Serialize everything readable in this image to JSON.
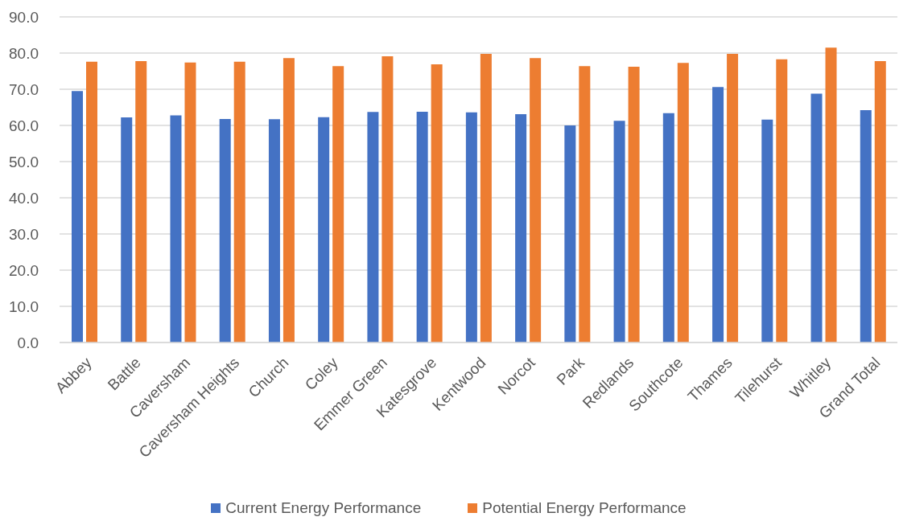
{
  "chart_data": {
    "type": "bar",
    "categories": [
      "Abbey",
      "Battle",
      "Caversham",
      "Caversham Heights",
      "Church",
      "Coley",
      "Emmer Green",
      "Katesgrove",
      "Kentwood",
      "Norcot",
      "Park",
      "Redlands",
      "Southcote",
      "Thames",
      "Tilehurst",
      "Whitley",
      "Grand Total"
    ],
    "series": [
      {
        "name": "Current Energy Performance",
        "color": "#4472c4",
        "values": [
          69.5,
          62.2,
          62.8,
          61.8,
          61.7,
          62.3,
          63.7,
          63.8,
          63.6,
          63.1,
          60.0,
          61.3,
          63.4,
          70.6,
          61.6,
          68.8,
          64.2
        ]
      },
      {
        "name": "Potential Energy Performance",
        "color": "#ed7d31",
        "values": [
          77.6,
          77.8,
          77.4,
          77.6,
          78.6,
          76.4,
          79.1,
          76.9,
          79.8,
          78.6,
          76.4,
          76.2,
          77.3,
          79.8,
          78.3,
          81.5,
          77.8
        ]
      }
    ],
    "ylim": [
      0,
      90
    ],
    "yticks": [
      {
        "value": 0,
        "label": "0.0"
      },
      {
        "value": 10,
        "label": "10.0"
      },
      {
        "value": 20,
        "label": "20.0"
      },
      {
        "value": 30,
        "label": "30.0"
      },
      {
        "value": 40,
        "label": "40.0"
      },
      {
        "value": 50,
        "label": "50.0"
      },
      {
        "value": 60,
        "label": "60.0"
      },
      {
        "value": 70,
        "label": "70.0"
      },
      {
        "value": 80,
        "label": "80.0"
      },
      {
        "value": 90,
        "label": "90.0"
      }
    ],
    "grid": "y",
    "legend": "bottom"
  }
}
